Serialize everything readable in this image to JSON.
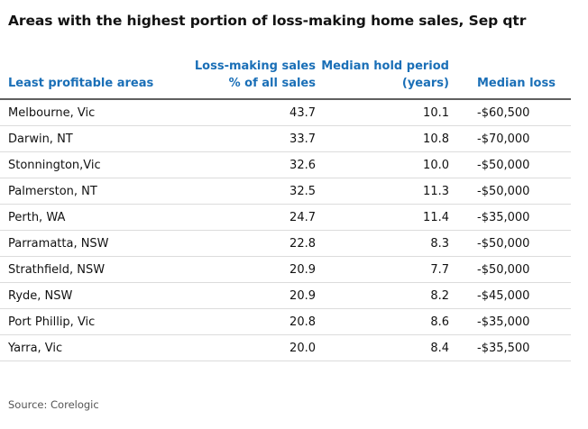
{
  "title": "Areas with the highest portion of loss-making home sales, Sep qtr",
  "table": {
    "headers": [
      "Least profitable areas",
      "Loss-making sales % of all sales",
      "Median hold period (years)",
      "Median loss"
    ],
    "rows": [
      {
        "area": "Melbourne, Vic",
        "loss_pct": "43.7",
        "hold": "10.1",
        "loss": "-$60,500"
      },
      {
        "area": "Darwin, NT",
        "loss_pct": "33.7",
        "hold": "10.8",
        "loss": "-$70,000"
      },
      {
        "area": "Stonnington,Vic",
        "loss_pct": "32.6",
        "hold": "10.0",
        "loss": "-$50,000"
      },
      {
        "area": "Palmerston, NT",
        "loss_pct": "32.5",
        "hold": "11.3",
        "loss": "-$50,000"
      },
      {
        "area": "Perth, WA",
        "loss_pct": "24.7",
        "hold": "11.4",
        "loss": "-$35,000"
      },
      {
        "area": "Parramatta, NSW",
        "loss_pct": "22.8",
        "hold": "8.3",
        "loss": "-$50,000"
      },
      {
        "area": "Strathfield, NSW",
        "loss_pct": "20.9",
        "hold": "7.7",
        "loss": "-$50,000"
      },
      {
        "area": "Ryde, NSW",
        "loss_pct": "20.9",
        "hold": "8.2",
        "loss": "-$45,000"
      },
      {
        "area": "Port Phillip, Vic",
        "loss_pct": "20.8",
        "hold": "8.6",
        "loss": "-$35,000"
      },
      {
        "area": "Yarra, Vic",
        "loss_pct": "20.0",
        "hold": "8.4",
        "loss": "-$35,500"
      }
    ]
  },
  "source": "Source: Corelogic",
  "colors": {
    "header_text": "#1a6fb7",
    "body_text": "#121212",
    "header_rule": "#5f5f5f",
    "row_rule": "#dcdcdc"
  }
}
